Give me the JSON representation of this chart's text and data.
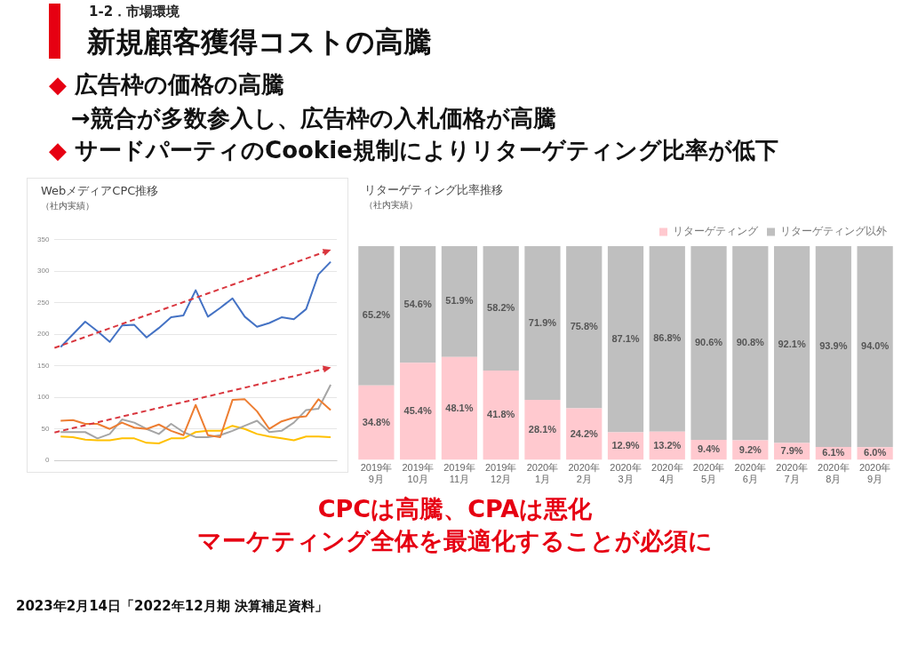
{
  "chart_data": [
    {
      "type": "other",
      "subtitle": "1-2．市場環境",
      "title": "新規顧客獲得コストの高騰",
      "annotations": [
        "◆ 広告枠の価格の高騰",
        "→競合が多数参入し、広告枠の入札価格が高騰",
        "◆ サードパーティのCookie規制によりリターゲティング比率が低下"
      ]
    },
    {
      "type": "line",
      "title": "WebメディアCPC推移",
      "subtitle": "（社内実績）",
      "categories": [
        null,
        null,
        null,
        null,
        null,
        null,
        null,
        null,
        null,
        null,
        null,
        null,
        null,
        null,
        null,
        null,
        null,
        null,
        null,
        null,
        null,
        null,
        null
      ],
      "ylim": [
        0,
        350
      ],
      "yticks": [
        0,
        50,
        100,
        150,
        200,
        250,
        300,
        350
      ],
      "grid": "y",
      "legend": false,
      "marker": "none",
      "tick_labels": "y",
      "series": [
        {
          "color": "#4472c4",
          "values": [
            180,
            200,
            220,
            205,
            188,
            214,
            215,
            195,
            210,
            227,
            230,
            270,
            228,
            242,
            257,
            228,
            212,
            218,
            227,
            224,
            240,
            295,
            315
          ]
        },
        {
          "color": "#ed7d31",
          "values": [
            63,
            64,
            58,
            58,
            50,
            60,
            52,
            50,
            57,
            47,
            40,
            88,
            40,
            37,
            96,
            97,
            78,
            50,
            62,
            68,
            70,
            97,
            80
          ]
        },
        {
          "color": "#a5a5a5",
          "values": [
            45,
            45,
            45,
            35,
            42,
            65,
            60,
            50,
            42,
            58,
            45,
            37,
            37,
            40,
            47,
            55,
            63,
            45,
            47,
            60,
            80,
            82,
            120
          ]
        },
        {
          "color": "#ffc000",
          "values": [
            38,
            37,
            33,
            32,
            32,
            35,
            35,
            28,
            27,
            35,
            35,
            45,
            47,
            47,
            55,
            50,
            42,
            38,
            35,
            32,
            38,
            38,
            37
          ]
        }
      ]
    },
    {
      "type": "bar",
      "stacked": true,
      "title": "リターゲティング比率推移",
      "subtitle": "（社内実績）",
      "categories": [
        "2019年9月",
        "2019年10月",
        "2019年11月",
        "2019年12月",
        "2020年1月",
        "2020年2月",
        "2020年3月",
        "2020年4月",
        "2020年5月",
        "2020年6月",
        "2020年7月",
        "2020年8月",
        "2020年9月"
      ],
      "ylim": [
        0,
        100
      ],
      "tick_labels": "x",
      "grid": false,
      "legend": "top right",
      "series": [
        {
          "name": "リターゲティング",
          "color": "#ffc9cf",
          "values": [
            34.8,
            45.4,
            48.1,
            41.8,
            28.1,
            24.2,
            12.9,
            13.2,
            9.4,
            9.2,
            7.9,
            6.1,
            6.0
          ],
          "value_labels": [
            "34.8%",
            "45.4%",
            "48.1%",
            "41.8%",
            "28.1%",
            "24.2%",
            "12.9%",
            "13.2%",
            "9.4%",
            "9.2%",
            "7.9%",
            "6.1%",
            "6.0%"
          ]
        },
        {
          "name": "リターゲティング以外",
          "color": "#bfbfbf",
          "values": [
            65.2,
            54.6,
            51.9,
            58.2,
            71.9,
            75.8,
            87.1,
            86.8,
            90.6,
            90.8,
            92.1,
            93.9,
            94.0
          ],
          "value_labels": [
            "65.2%",
            "54.6%",
            "51.9%",
            "58.2%",
            "71.9%",
            "75.8%",
            "87.1%",
            "86.8%",
            "90.6%",
            "90.8%",
            "92.1%",
            "93.9%",
            "94.0%"
          ]
        }
      ]
    },
    {
      "type": "other",
      "annotations": [
        "CPCは高騰、CPAは悪化",
        "マーケティング全体を最適化することが必須に",
        "2023年2月14日「2022年12月期 決算補足資料」"
      ]
    }
  ]
}
